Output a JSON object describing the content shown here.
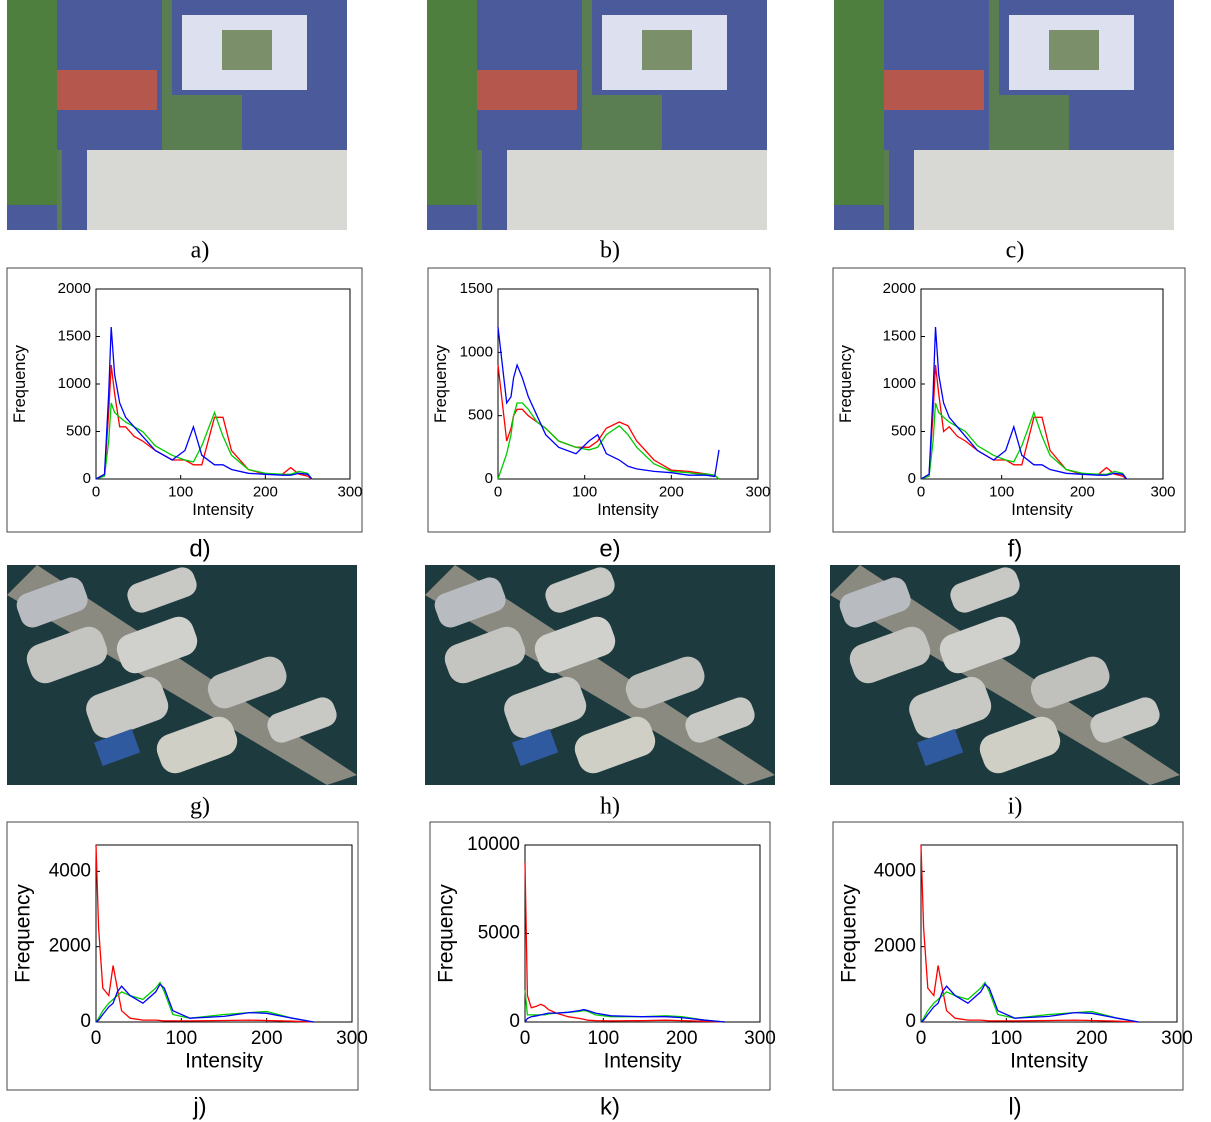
{
  "image_captions": [
    "a)",
    "b)",
    "c)",
    "g)",
    "h)",
    "i)"
  ],
  "chart_data": [
    {
      "type": "line",
      "caption": "d)",
      "xlabel": "Intensity",
      "ylabel": "Frequency",
      "x": [
        0,
        10,
        15,
        18,
        22,
        28,
        35,
        45,
        55,
        70,
        90,
        105,
        115,
        125,
        140,
        150,
        160,
        180,
        200,
        220,
        230,
        240,
        250,
        255
      ],
      "xlim": [
        0,
        300
      ],
      "xticks": [
        0,
        100,
        200,
        300
      ],
      "ylim": [
        0,
        2000
      ],
      "yticks": [
        0,
        500,
        1000,
        1500,
        2000
      ],
      "series": [
        {
          "color": "#ff0000",
          "values": [
            0,
            50,
            700,
            1200,
            900,
            550,
            550,
            450,
            400,
            300,
            200,
            200,
            150,
            150,
            650,
            650,
            300,
            100,
            50,
            50,
            120,
            50,
            30,
            0
          ]
        },
        {
          "color": "#00cc00",
          "values": [
            0,
            30,
            400,
            800,
            700,
            650,
            600,
            550,
            500,
            350,
            250,
            200,
            180,
            350,
            700,
            450,
            250,
            100,
            60,
            50,
            50,
            80,
            60,
            0
          ]
        },
        {
          "color": "#0000ff",
          "values": [
            0,
            50,
            900,
            1600,
            1100,
            800,
            650,
            550,
            450,
            300,
            200,
            300,
            550,
            250,
            150,
            150,
            100,
            60,
            50,
            40,
            40,
            60,
            50,
            0
          ]
        }
      ]
    },
    {
      "type": "line",
      "caption": "e)",
      "xlabel": "Intensity",
      "ylabel": "Frequency",
      "x": [
        0,
        10,
        15,
        18,
        22,
        28,
        35,
        45,
        55,
        70,
        90,
        105,
        115,
        125,
        140,
        150,
        160,
        180,
        200,
        220,
        230,
        240,
        250,
        255
      ],
      "xlim": [
        0,
        300
      ],
      "xticks": [
        0,
        100,
        200,
        300
      ],
      "ylim": [
        0,
        1500
      ],
      "yticks": [
        0,
        500,
        1000,
        1500
      ],
      "series": [
        {
          "color": "#ff0000",
          "values": [
            900,
            300,
            400,
            500,
            550,
            550,
            500,
            450,
            400,
            300,
            250,
            250,
            300,
            400,
            450,
            420,
            300,
            150,
            70,
            60,
            50,
            40,
            30,
            0
          ]
        },
        {
          "color": "#00cc00",
          "values": [
            0,
            200,
            350,
            500,
            600,
            600,
            550,
            450,
            400,
            300,
            250,
            230,
            250,
            350,
            420,
            350,
            250,
            120,
            60,
            50,
            40,
            40,
            30,
            0
          ]
        },
        {
          "color": "#0000ff",
          "values": [
            1200,
            600,
            650,
            800,
            900,
            800,
            650,
            500,
            350,
            250,
            200,
            300,
            350,
            200,
            150,
            100,
            80,
            60,
            50,
            30,
            30,
            30,
            20,
            230
          ]
        }
      ]
    },
    {
      "type": "line",
      "caption": "f)",
      "xlabel": "Intensity",
      "ylabel": "Frequency",
      "x": [
        0,
        10,
        15,
        18,
        22,
        28,
        35,
        45,
        55,
        70,
        90,
        105,
        115,
        125,
        140,
        150,
        160,
        180,
        200,
        220,
        230,
        240,
        250,
        255
      ],
      "xlim": [
        0,
        300
      ],
      "xticks": [
        0,
        100,
        200,
        300
      ],
      "ylim": [
        0,
        2000
      ],
      "yticks": [
        0,
        500,
        1000,
        1500,
        2000
      ],
      "series": [
        {
          "color": "#ff0000",
          "values": [
            0,
            50,
            700,
            1200,
            900,
            500,
            550,
            450,
            400,
            300,
            200,
            200,
            150,
            150,
            650,
            650,
            300,
            100,
            50,
            50,
            120,
            50,
            30,
            0
          ]
        },
        {
          "color": "#00cc00",
          "values": [
            0,
            30,
            400,
            800,
            700,
            650,
            600,
            550,
            500,
            350,
            250,
            200,
            180,
            350,
            700,
            450,
            250,
            100,
            60,
            50,
            50,
            80,
            60,
            0
          ]
        },
        {
          "color": "#0000ff",
          "values": [
            0,
            50,
            900,
            1600,
            1100,
            800,
            650,
            550,
            450,
            300,
            200,
            300,
            550,
            250,
            150,
            150,
            100,
            60,
            50,
            40,
            40,
            60,
            50,
            0
          ]
        }
      ]
    },
    {
      "type": "line",
      "caption": "j)",
      "xlabel": "Intensity",
      "ylabel": "Frequency",
      "x": [
        0,
        3,
        8,
        15,
        20,
        25,
        30,
        40,
        55,
        70,
        75,
        80,
        90,
        110,
        150,
        180,
        200,
        230,
        255
      ],
      "xlim": [
        0,
        300
      ],
      "xticks": [
        0,
        100,
        200,
        300
      ],
      "ylim": [
        0,
        4700
      ],
      "yticks": [
        0,
        2000,
        4000
      ],
      "series": [
        {
          "color": "#ff0000",
          "values": [
            4700,
            2500,
            900,
            700,
            1500,
            900,
            300,
            100,
            50,
            50,
            40,
            30,
            30,
            30,
            40,
            50,
            40,
            20,
            0
          ]
        },
        {
          "color": "#00cc00",
          "values": [
            0,
            100,
            300,
            500,
            600,
            700,
            800,
            700,
            600,
            900,
            1050,
            800,
            200,
            100,
            200,
            250,
            280,
            100,
            0
          ]
        },
        {
          "color": "#0000ff",
          "values": [
            0,
            50,
            200,
            400,
            500,
            800,
            950,
            700,
            500,
            800,
            1000,
            900,
            300,
            100,
            150,
            250,
            230,
            100,
            0
          ]
        }
      ]
    },
    {
      "type": "line",
      "caption": "k)",
      "xlabel": "Intensity",
      "ylabel": "Frequency",
      "x": [
        0,
        3,
        8,
        15,
        20,
        25,
        30,
        40,
        55,
        70,
        75,
        80,
        90,
        110,
        150,
        180,
        200,
        230,
        255
      ],
      "xlim": [
        0,
        300
      ],
      "xticks": [
        0,
        100,
        200,
        300
      ],
      "ylim": [
        0,
        10000
      ],
      "yticks": [
        0,
        5000,
        10000
      ],
      "series": [
        {
          "color": "#ff0000",
          "values": [
            9000,
            1500,
            800,
            900,
            1000,
            900,
            700,
            500,
            300,
            200,
            150,
            100,
            80,
            60,
            80,
            100,
            80,
            40,
            0
          ]
        },
        {
          "color": "#00cc00",
          "values": [
            1800,
            400,
            400,
            400,
            400,
            400,
            450,
            500,
            550,
            600,
            650,
            600,
            400,
            300,
            300,
            350,
            300,
            100,
            0
          ]
        },
        {
          "color": "#0000ff",
          "values": [
            0,
            200,
            300,
            350,
            400,
            450,
            500,
            500,
            550,
            650,
            700,
            650,
            500,
            350,
            300,
            300,
            250,
            100,
            0
          ]
        }
      ]
    },
    {
      "type": "line",
      "caption": "l)",
      "xlabel": "Intensity",
      "ylabel": "Frequency",
      "x": [
        0,
        3,
        8,
        15,
        20,
        25,
        30,
        40,
        55,
        70,
        75,
        80,
        90,
        110,
        150,
        180,
        200,
        230,
        255
      ],
      "xlim": [
        0,
        300
      ],
      "xticks": [
        0,
        100,
        200,
        300
      ],
      "ylim": [
        0,
        4700
      ],
      "yticks": [
        0,
        2000,
        4000
      ],
      "series": [
        {
          "color": "#ff0000",
          "values": [
            4700,
            2500,
            900,
            700,
            1500,
            900,
            300,
            100,
            50,
            50,
            40,
            30,
            30,
            30,
            40,
            50,
            40,
            20,
            0
          ]
        },
        {
          "color": "#00cc00",
          "values": [
            0,
            100,
            300,
            500,
            600,
            700,
            800,
            700,
            600,
            900,
            1050,
            800,
            200,
            100,
            200,
            250,
            280,
            100,
            0
          ]
        },
        {
          "color": "#0000ff",
          "values": [
            0,
            50,
            200,
            400,
            500,
            800,
            950,
            700,
            500,
            800,
            1000,
            900,
            300,
            100,
            150,
            250,
            230,
            100,
            0
          ]
        }
      ]
    }
  ]
}
